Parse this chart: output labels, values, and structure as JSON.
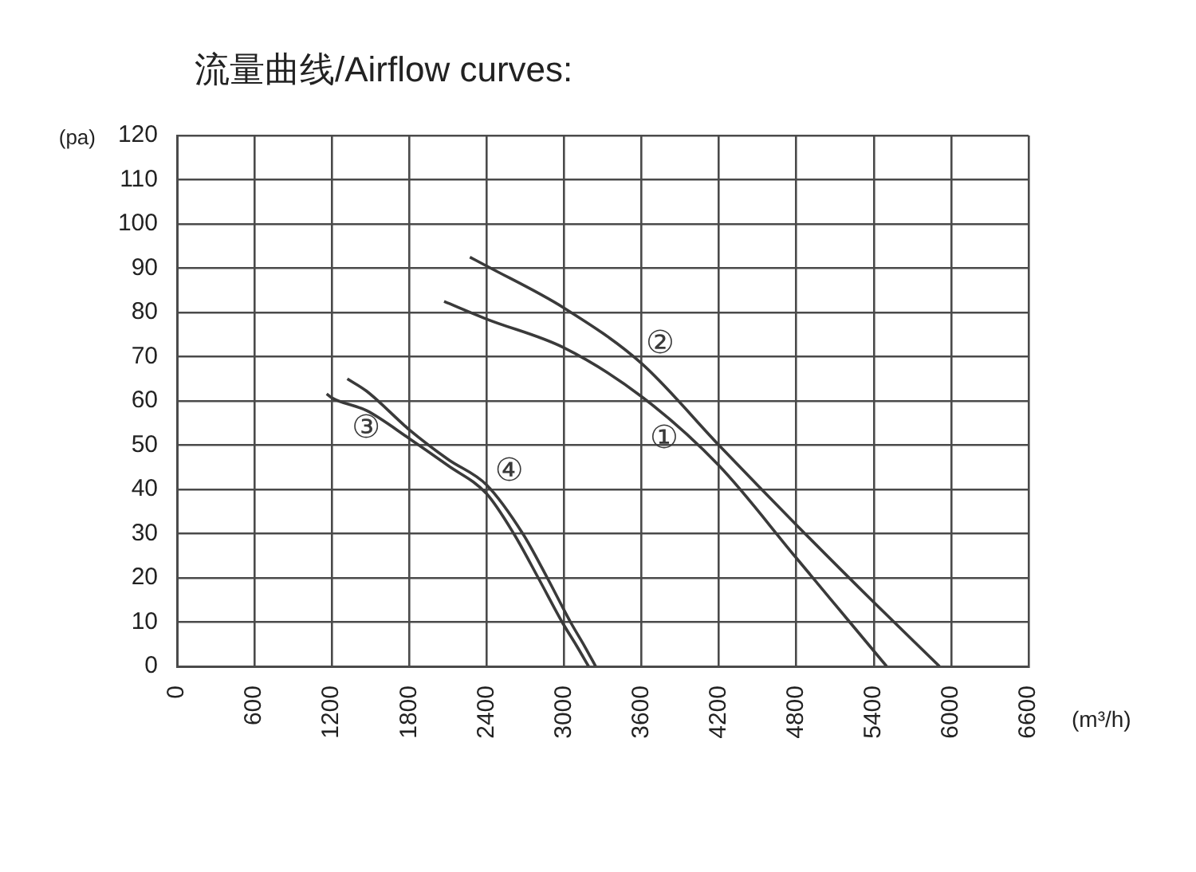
{
  "chart_data": {
    "type": "line",
    "title": "流量曲线/Airflow curves:",
    "xlabel": "(m³/h)",
    "ylabel": "(pa)",
    "xlim": [
      0,
      6600
    ],
    "xticks": [
      0,
      600,
      1200,
      1800,
      2400,
      3000,
      3600,
      4200,
      4800,
      5400,
      6000,
      6600
    ],
    "ylim": [
      0,
      120
    ],
    "yticks": [
      0,
      10,
      20,
      30,
      40,
      50,
      60,
      70,
      80,
      90,
      100,
      110,
      120
    ],
    "grid": true,
    "legend": false,
    "marker": "none",
    "line_style": "solid",
    "series": [
      {
        "name": "①",
        "color": "#3a3a3a",
        "x": [
          2070,
          2400,
          3000,
          3600,
          4200,
          4800,
          5200,
          5500
        ],
        "values": [
          82.5,
          78.5,
          72,
          61,
          45.4,
          24.5,
          10.5,
          0
        ]
      },
      {
        "name": "②",
        "color": "#3a3a3a",
        "x": [
          2270,
          2400,
          3000,
          3600,
          4200,
          4800,
          5400,
          5910
        ],
        "values": [
          92.5,
          90.5,
          81,
          68.5,
          50,
          32,
          14.5,
          0
        ]
      },
      {
        "name": "③",
        "color": "#3a3a3a",
        "x": [
          1160,
          1200,
          1470,
          1800,
          2100,
          2400,
          2610,
          2800,
          2985,
          3100,
          3190
        ],
        "values": [
          61.6,
          60.7,
          57.8,
          51.5,
          45.4,
          39,
          30,
          20,
          10,
          4.5,
          0
        ]
      },
      {
        "name": "④",
        "color": "#3a3a3a",
        "x": [
          1320,
          1470,
          1800,
          2100,
          2400,
          2680,
          2870,
          3050,
          3160,
          3245
        ],
        "values": [
          65,
          62.2,
          53.5,
          46.8,
          41,
          30,
          20,
          10,
          4.5,
          0
        ]
      }
    ]
  }
}
